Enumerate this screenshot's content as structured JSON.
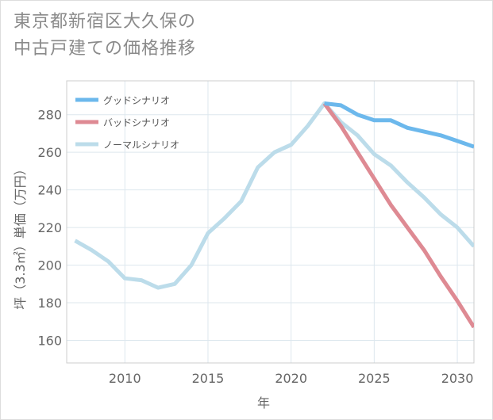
{
  "title_line1": "東京都新宿区大久保の",
  "title_line2": "中古戸建ての価格推移",
  "chart_data": {
    "type": "line",
    "title": "東京都新宿区大久保の中古戸建ての価格推移",
    "xlabel": "年",
    "ylabel": "坪（3.3㎡）単価（万円）",
    "xlim": [
      2006.5,
      2031
    ],
    "ylim": [
      148,
      298
    ],
    "x_ticks": [
      2010,
      2015,
      2020,
      2025,
      2030
    ],
    "y_ticks": [
      160,
      180,
      200,
      220,
      240,
      260,
      280
    ],
    "grid": true,
    "legend_position": "top-left",
    "series": [
      {
        "name": "グッドシナリオ",
        "color": "#6cb8ec",
        "points": [
          [
            2022,
            286
          ],
          [
            2023,
            285
          ],
          [
            2024,
            280
          ],
          [
            2025,
            277
          ],
          [
            2026,
            277
          ],
          [
            2027,
            273
          ],
          [
            2028,
            271
          ],
          [
            2029,
            269
          ],
          [
            2030,
            266
          ],
          [
            2031,
            263
          ]
        ]
      },
      {
        "name": "バッドシナリオ",
        "color": "#de8a93",
        "points": [
          [
            2022,
            286
          ],
          [
            2023,
            274
          ],
          [
            2024,
            260
          ],
          [
            2025,
            246
          ],
          [
            2026,
            232
          ],
          [
            2027,
            220
          ],
          [
            2028,
            208
          ],
          [
            2029,
            194
          ],
          [
            2030,
            181
          ],
          [
            2031,
            167
          ]
        ]
      },
      {
        "name": "ノーマルシナリオ",
        "color": "#bcdcea",
        "points": [
          [
            2007,
            213
          ],
          [
            2008,
            208
          ],
          [
            2009,
            202
          ],
          [
            2010,
            193
          ],
          [
            2011,
            192
          ],
          [
            2012,
            188
          ],
          [
            2013,
            190
          ],
          [
            2014,
            200
          ],
          [
            2015,
            217
          ],
          [
            2016,
            225
          ],
          [
            2017,
            234
          ],
          [
            2018,
            252
          ],
          [
            2019,
            260
          ],
          [
            2020,
            264
          ],
          [
            2021,
            274
          ],
          [
            2022,
            286
          ],
          [
            2023,
            276
          ],
          [
            2024,
            269
          ],
          [
            2025,
            259
          ],
          [
            2026,
            253
          ],
          [
            2027,
            244
          ],
          [
            2028,
            236
          ],
          [
            2029,
            227
          ],
          [
            2030,
            220
          ],
          [
            2031,
            210
          ]
        ]
      }
    ]
  }
}
